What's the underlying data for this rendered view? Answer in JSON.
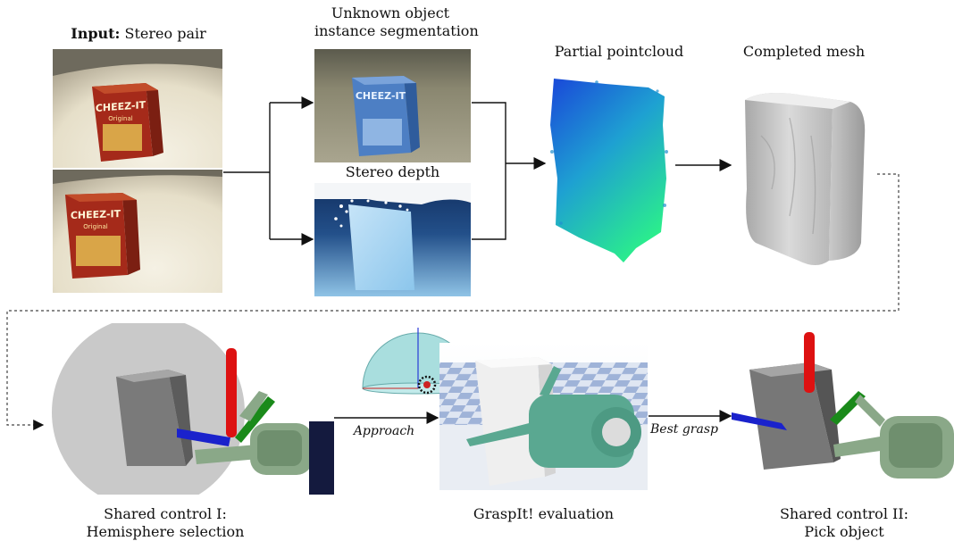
{
  "labels": {
    "input_bold": "Input:",
    "input_rest": " Stereo pair",
    "segmentation_line1": "Unknown object",
    "segmentation_line2": "instance segmentation",
    "stereo_depth": "Stereo depth",
    "partial_pointcloud": "Partial pointcloud",
    "completed_mesh": "Completed mesh",
    "approach": "Approach",
    "best_grasp": "Best grasp",
    "shared1_line1": "Shared control I:",
    "shared1_line2": "Hemisphere selection",
    "graspit": "GraspIt! evaluation",
    "shared2_line1": "Shared control II:",
    "shared2_line2": "Pick object"
  },
  "box": {
    "brand": "CHEEZ-IT",
    "sub": "Original"
  },
  "colors": {
    "box_red": "#a52a1a",
    "seg_blue": "#4d7fc4",
    "depth_dark": "#1d3d6e",
    "pc_top": "#1a57d8",
    "pc_bottom": "#28ea8c",
    "mesh_gray": "#c8c8c8",
    "hand_green": "#8aa888",
    "graspit_green": "#5aa891",
    "axis_red": "#dd1111",
    "axis_green": "#1a8a1a",
    "axis_blue": "#1a22cc"
  }
}
